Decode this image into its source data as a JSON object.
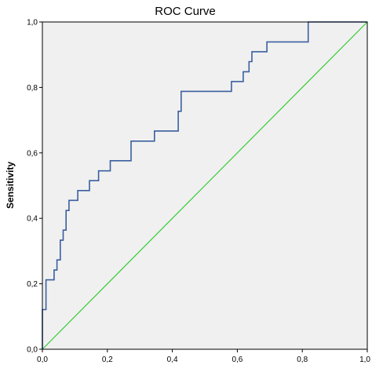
{
  "chart_data": {
    "type": "line",
    "title": "ROC Curve",
    "xlabel": "",
    "ylabel": "Sensitivity",
    "xlim": [
      0,
      1
    ],
    "ylim": [
      0,
      1
    ],
    "x_ticks": [
      "0,0",
      "0,2",
      "0,4",
      "0,6",
      "0,8",
      "1,0"
    ],
    "y_ticks": [
      "0,0",
      "0,2",
      "0,4",
      "0,6",
      "0,8",
      "1,0"
    ],
    "grid": false,
    "colors": {
      "plot_background": "#f0f0f0",
      "roc_line": "#3a5f9e",
      "reference_line": "#33cc33"
    },
    "series": [
      {
        "points": [
          [
            0.0,
            0.0
          ],
          [
            0.0,
            0.121
          ],
          [
            0.011,
            0.121
          ],
          [
            0.011,
            0.212
          ],
          [
            0.036,
            0.212
          ],
          [
            0.036,
            0.242
          ],
          [
            0.045,
            0.242
          ],
          [
            0.045,
            0.273
          ],
          [
            0.055,
            0.273
          ],
          [
            0.055,
            0.333
          ],
          [
            0.064,
            0.333
          ],
          [
            0.064,
            0.364
          ],
          [
            0.073,
            0.364
          ],
          [
            0.073,
            0.424
          ],
          [
            0.082,
            0.424
          ],
          [
            0.082,
            0.455
          ],
          [
            0.109,
            0.455
          ],
          [
            0.109,
            0.485
          ],
          [
            0.145,
            0.485
          ],
          [
            0.145,
            0.515
          ],
          [
            0.173,
            0.515
          ],
          [
            0.173,
            0.545
          ],
          [
            0.209,
            0.545
          ],
          [
            0.209,
            0.576
          ],
          [
            0.273,
            0.576
          ],
          [
            0.273,
            0.636
          ],
          [
            0.345,
            0.636
          ],
          [
            0.345,
            0.667
          ],
          [
            0.418,
            0.667
          ],
          [
            0.418,
            0.727
          ],
          [
            0.427,
            0.727
          ],
          [
            0.427,
            0.788
          ],
          [
            0.582,
            0.788
          ],
          [
            0.582,
            0.818
          ],
          [
            0.618,
            0.818
          ],
          [
            0.618,
            0.848
          ],
          [
            0.636,
            0.848
          ],
          [
            0.636,
            0.879
          ],
          [
            0.645,
            0.879
          ],
          [
            0.645,
            0.909
          ],
          [
            0.691,
            0.909
          ],
          [
            0.691,
            0.939
          ],
          [
            0.818,
            0.939
          ],
          [
            0.818,
            1.0
          ],
          [
            1.0,
            1.0
          ]
        ]
      },
      {
        "points": [
          [
            0,
            0
          ],
          [
            1,
            1
          ]
        ]
      }
    ]
  }
}
